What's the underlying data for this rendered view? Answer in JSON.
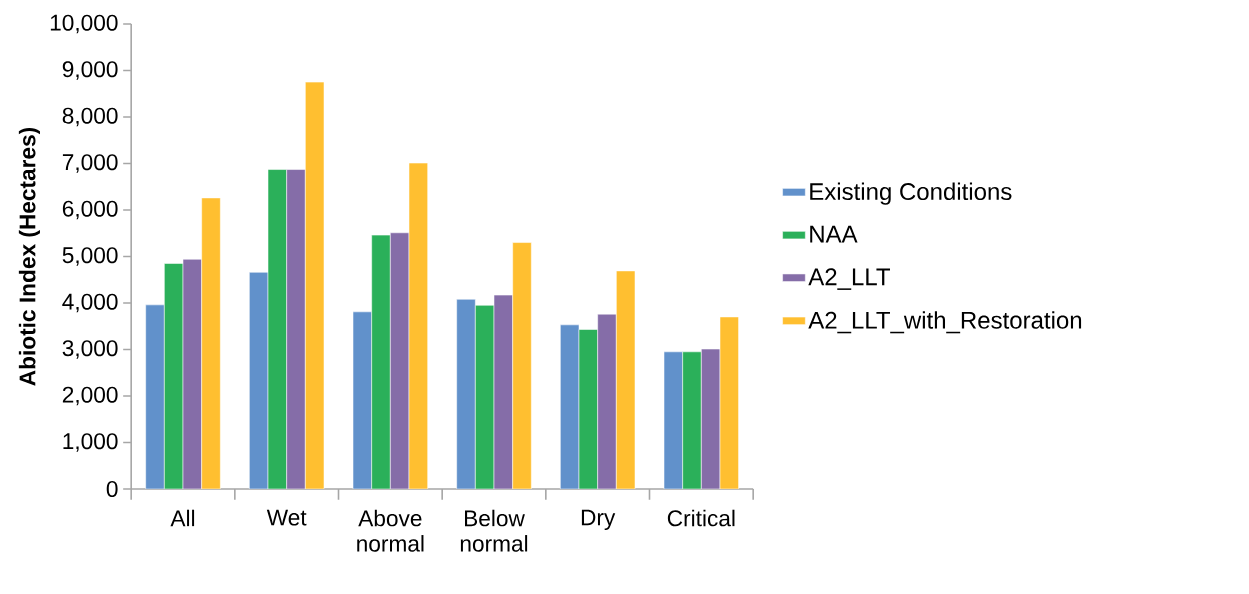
{
  "chart_data": {
    "type": "bar",
    "ylabel": "Abiotic Index (Hectares)",
    "categories": [
      "All",
      "Wet",
      "Above normal",
      "Below normal",
      "Dry",
      "Critical"
    ],
    "series": [
      {
        "name": "Existing Conditions",
        "color": "#6191cb",
        "values": [
          3960,
          4660,
          3810,
          4080,
          3530,
          2950
        ]
      },
      {
        "name": "NAA",
        "color": "#2bb05a",
        "values": [
          4850,
          6870,
          5460,
          3950,
          3430,
          2950
        ]
      },
      {
        "name": "A2_LLT",
        "color": "#856da8",
        "values": [
          4940,
          6870,
          5510,
          4170,
          3760,
          3010
        ]
      },
      {
        "name": "A2_LLT_with_Restoration",
        "color": "#ffbf30",
        "values": [
          6260,
          8750,
          7010,
          5300,
          4690,
          3700
        ]
      }
    ],
    "ylim": [
      0,
      10000
    ],
    "yticks": [
      0,
      {
        "value": 1000,
        "label": "1,000"
      },
      {
        "value": 2000,
        "label": "2,000"
      },
      {
        "value": 3000,
        "label": "3,000"
      },
      {
        "value": 4000,
        "label": "4,000"
      },
      {
        "value": 5000,
        "label": "5,000"
      },
      {
        "value": 6000,
        "label": "6,000"
      },
      {
        "value": 7000,
        "label": "7,000"
      },
      {
        "value": 8000,
        "label": "8,000"
      },
      {
        "value": 9000,
        "label": "9,000"
      },
      {
        "value": 10000,
        "label": "10,000"
      }
    ],
    "legend": "right"
  }
}
